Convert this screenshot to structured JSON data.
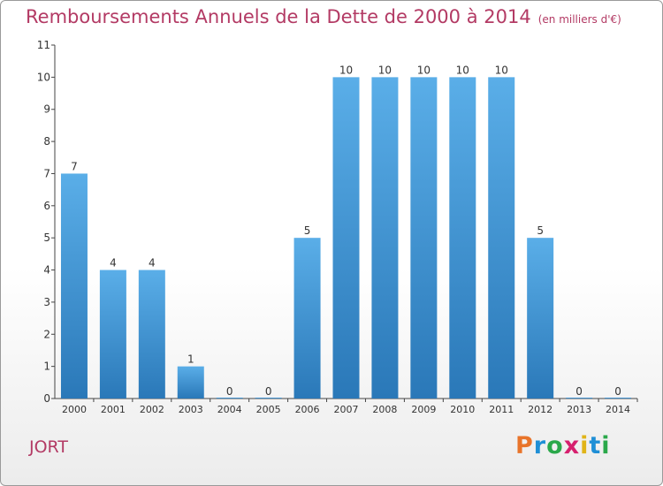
{
  "header": {
    "title": "Remboursements Annuels de la Dette de 2000 à 2014",
    "subtitle": "(en milliers d'€)"
  },
  "footer": {
    "commune": "JORT",
    "brand_letters": [
      "P",
      "r",
      "o",
      "x",
      "i",
      "t",
      "i"
    ]
  },
  "colors": {
    "title": "#b33a64",
    "bar_top": "#5aaee8",
    "bar_bottom": "#2a78b8",
    "brand": [
      "#e8742a",
      "#1f8fd6",
      "#2aa84a",
      "#d6206e",
      "#e0b418",
      "#1f8fd6",
      "#2aa84a"
    ]
  },
  "chart_data": {
    "type": "bar",
    "categories": [
      "2000",
      "2001",
      "2002",
      "2003",
      "2004",
      "2005",
      "2006",
      "2007",
      "2008",
      "2009",
      "2010",
      "2011",
      "2012",
      "2013",
      "2014"
    ],
    "values": [
      7,
      4,
      4,
      1,
      0,
      0,
      5,
      10,
      10,
      10,
      10,
      10,
      5,
      0,
      0
    ],
    "data_labels": [
      "7",
      "4",
      "4",
      "1",
      "0",
      "0",
      "5",
      "10",
      "10",
      "10",
      "10",
      "10",
      "5",
      "0",
      "0"
    ],
    "y_ticks": [
      "0",
      "1",
      "2",
      "3",
      "4",
      "5",
      "6",
      "7",
      "8",
      "9",
      "10",
      "11"
    ],
    "ylim": [
      0,
      11
    ],
    "grid": false,
    "legend": "none"
  }
}
